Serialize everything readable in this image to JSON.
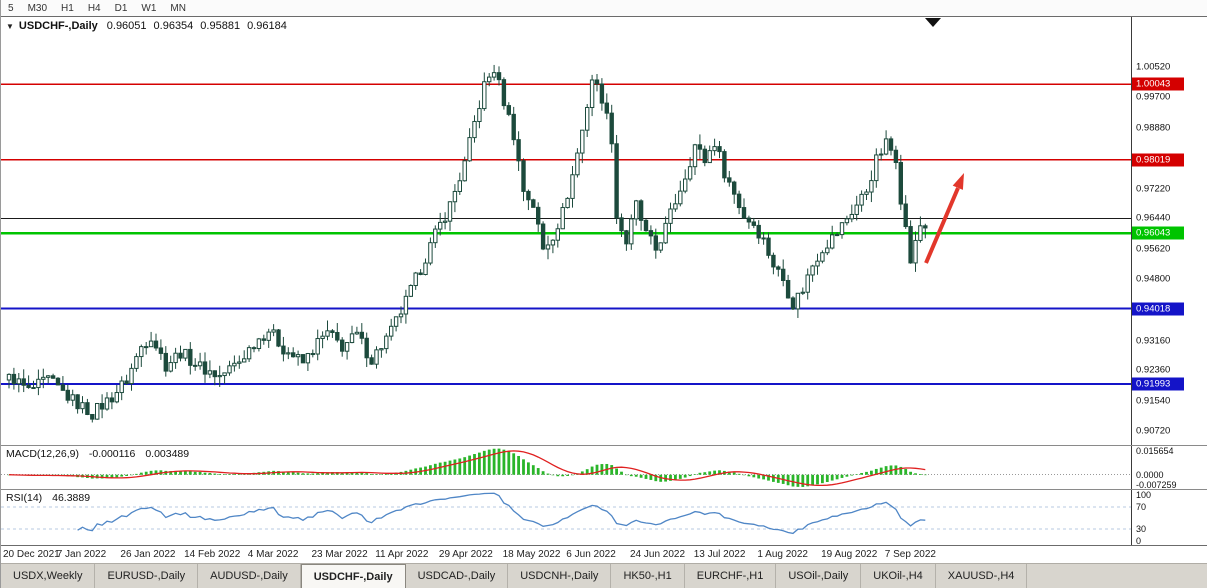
{
  "toolbar": {
    "timeframes": [
      "5",
      "M30",
      "H1",
      "H4",
      "D1",
      "W1",
      "MN"
    ]
  },
  "chart": {
    "expander_icon": "▼",
    "title": {
      "symbol": "USDCHF-,Daily",
      "open": "0.96051",
      "high": "0.96354",
      "low": "0.95881",
      "close": "0.96184"
    }
  },
  "price_axis": {
    "ticks": [
      1.0052,
      0.997,
      0.9888,
      0.9722,
      0.9644,
      0.9562,
      0.948,
      0.9316,
      0.9236,
      0.9154,
      0.9072
    ],
    "tick_labels": [
      "1.00520",
      "0.99700",
      "0.98880",
      "0.97220",
      "0.96440",
      "0.95620",
      "0.94800",
      "0.93160",
      "0.92360",
      "0.91540",
      "0.90720"
    ]
  },
  "levels": [
    {
      "price": 1.00043,
      "label": "1.00043",
      "color": "#d40000",
      "thickness": 1.5,
      "show_label": true
    },
    {
      "price": 0.98019,
      "label": "0.98019",
      "color": "#d40000",
      "thickness": 1.5,
      "show_label": true
    },
    {
      "price": 0.9644,
      "label": "",
      "color": "#1a1a1a",
      "thickness": 1.2,
      "show_label": false
    },
    {
      "price": 0.96043,
      "label": "0.96043",
      "color": "#00c400",
      "thickness": 2.6,
      "show_label": true
    },
    {
      "price": 0.94018,
      "label": "0.94018",
      "color": "#1414c8",
      "thickness": 2,
      "show_label": true
    },
    {
      "price": 0.91993,
      "label": "0.91993",
      "color": "#1414c8",
      "thickness": 2,
      "show_label": true
    }
  ],
  "annotation": {
    "arrow_color": "#e2372b",
    "marker_color": "#111111"
  },
  "macd": {
    "label": "MACD(12,26,9)",
    "value_main": "-0.000116",
    "value_signal": "0.003489",
    "fast": 12,
    "slow": 26,
    "signal": 9,
    "hist_color": "#2ab52a",
    "signal_color": "#e02020",
    "axis": [
      {
        "text": "0.015654",
        "value": 0.015654
      },
      {
        "text": "0.0000",
        "value": 0
      },
      {
        "text": "-0.007259",
        "value": -0.007259
      }
    ]
  },
  "rsi": {
    "label": "RSI(14)",
    "value": "46.3889",
    "period": 14,
    "line_color": "#4f86c6",
    "level_color": "#b7c9e2",
    "levels": [
      70,
      30
    ],
    "axis": [
      {
        "text": "100",
        "value": 100
      },
      {
        "text": "70",
        "value": 70
      },
      {
        "text": "30",
        "value": 30
      },
      {
        "text": "0",
        "value": 0
      }
    ]
  },
  "dates": [
    "20 Dec 2021",
    "7 Jan 2022",
    "26 Jan 2022",
    "14 Feb 2022",
    "4 Mar 2022",
    "23 Mar 2022",
    "11 Apr 2022",
    "29 Apr 2022",
    "18 May 2022",
    "6 Jun 2022",
    "24 Jun 2022",
    "13 Jul 2022",
    "1 Aug 2022",
    "19 Aug 2022",
    "7 Sep 2022"
  ],
  "tabbar": {
    "active_index": 3,
    "items": [
      "USDX,Weekly",
      "EURUSD-,Daily",
      "AUDUSD-,Daily",
      "USDCHF-,Daily",
      "USDCAD-,Daily",
      "USDCNH-,Daily",
      "HK50-,H1",
      "EURCHF-,H1",
      "USOil-,Daily",
      "UKOil-,H4",
      "XAUUSD-,H4"
    ]
  },
  "chart_data": {
    "type": "candlestick",
    "symbol": "USDCHF",
    "timeframe": "Daily",
    "title": "USDCHF-,Daily",
    "candle_count": 188,
    "visible_price_range": [
      0.903,
      1.0185
    ],
    "x_date_labels": [
      "20 Dec 2021",
      "7 Jan 2022",
      "26 Jan 2022",
      "14 Feb 2022",
      "4 Mar 2022",
      "23 Mar 2022",
      "11 Apr 2022",
      "29 Apr 2022",
      "18 May 2022",
      "6 Jun 2022",
      "24 Jun 2022",
      "13 Jul 2022",
      "1 Aug 2022",
      "19 Aug 2022",
      "7 Sep 2022"
    ],
    "bull_color": "#ffffff",
    "bear_color": "#1c4a3c",
    "close_waypoints": [
      [
        0,
        0.9225
      ],
      [
        4,
        0.918
      ],
      [
        8,
        0.921
      ],
      [
        13,
        0.9155
      ],
      [
        17,
        0.912
      ],
      [
        21,
        0.9165
      ],
      [
        24,
        0.921
      ],
      [
        27,
        0.93
      ],
      [
        29,
        0.933
      ],
      [
        32,
        0.925
      ],
      [
        35,
        0.9285
      ],
      [
        39,
        0.9245
      ],
      [
        43,
        0.922
      ],
      [
        47,
        0.926
      ],
      [
        50,
        0.931
      ],
      [
        53,
        0.9345
      ],
      [
        56,
        0.9295
      ],
      [
        60,
        0.9255
      ],
      [
        63,
        0.931
      ],
      [
        65,
        0.9335
      ],
      [
        68,
        0.93
      ],
      [
        71,
        0.933
      ],
      [
        74,
        0.9265
      ],
      [
        78,
        0.934
      ],
      [
        81,
        0.942
      ],
      [
        84,
        0.951
      ],
      [
        87,
        0.96
      ],
      [
        90,
        0.968
      ],
      [
        93,
        0.979
      ],
      [
        95,
        0.99
      ],
      [
        97,
        1.0
      ],
      [
        99,
        1.0045
      ],
      [
        101,
        0.996
      ],
      [
        103,
        0.987
      ],
      [
        105,
        0.972
      ],
      [
        107,
        0.968
      ],
      [
        109,
        0.956
      ],
      [
        111,
        0.96
      ],
      [
        113,
        0.966
      ],
      [
        115,
        0.976
      ],
      [
        117,
        0.988
      ],
      [
        119,
        1.002
      ],
      [
        121,
        0.997
      ],
      [
        123,
        0.986
      ],
      [
        124,
        0.965
      ],
      [
        126,
        0.958
      ],
      [
        128,
        0.968
      ],
      [
        130,
        0.96
      ],
      [
        132,
        0.956
      ],
      [
        134,
        0.962
      ],
      [
        136,
        0.969
      ],
      [
        138,
        0.976
      ],
      [
        140,
        0.984
      ],
      [
        142,
        0.98
      ],
      [
        144,
        0.985
      ],
      [
        146,
        0.977
      ],
      [
        148,
        0.971
      ],
      [
        150,
        0.965
      ],
      [
        152,
        0.963
      ],
      [
        154,
        0.9585
      ],
      [
        156,
        0.952
      ],
      [
        158,
        0.948
      ],
      [
        160,
        0.9415
      ],
      [
        162,
        0.9455
      ],
      [
        164,
        0.952
      ],
      [
        166,
        0.9565
      ],
      [
        169,
        0.9605
      ],
      [
        171,
        0.9645
      ],
      [
        173,
        0.968
      ],
      [
        175,
        0.972
      ],
      [
        177,
        0.98
      ],
      [
        179,
        0.9845
      ],
      [
        181,
        0.981
      ],
      [
        182,
        0.97
      ],
      [
        183,
        0.9615
      ],
      [
        184,
        0.953
      ],
      [
        185,
        0.9575
      ],
      [
        186,
        0.9625
      ],
      [
        187,
        0.96184
      ]
    ]
  }
}
